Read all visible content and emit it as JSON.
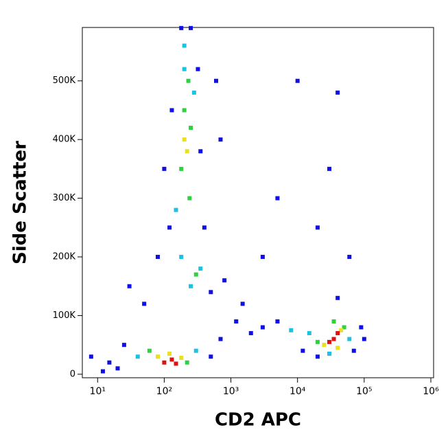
{
  "chart_data": {
    "type": "scatter",
    "xlabel": "CD2 APC",
    "ylabel": "Side Scatter",
    "xscale": "log",
    "xlim": [
      5.9,
      1100000
    ],
    "xticks": [
      {
        "value": 10,
        "label": "10¹"
      },
      {
        "value": 100,
        "label": "10²"
      },
      {
        "value": 1000,
        "label": "10³"
      },
      {
        "value": 10000,
        "label": "10⁴"
      },
      {
        "value": 100000,
        "label": "10⁵"
      },
      {
        "value": 1000000,
        "label": "10⁶"
      }
    ],
    "ylim": [
      -6000,
      591000
    ],
    "yticks": [
      0,
      {
        "value": 100000,
        "label": "100K"
      },
      {
        "value": 200000,
        "label": "200K"
      },
      {
        "value": 300000,
        "label": "300K"
      },
      {
        "value": 400000,
        "label": "400K"
      },
      {
        "value": 500000,
        "label": "500K"
      }
    ],
    "series": [
      {
        "color": "#1010e0",
        "x": [
          15,
          25,
          20,
          500,
          700,
          50,
          80,
          120,
          400,
          500,
          800,
          1500,
          3000,
          5000,
          2000,
          100,
          350,
          130,
          320,
          250,
          180,
          700,
          1200,
          90000,
          70000,
          12000,
          20000,
          20000,
          30000,
          40000,
          10000,
          5000,
          60000,
          8,
          12,
          30,
          600,
          100000,
          40000,
          3000
        ],
        "values": [
          20000,
          50000,
          10000,
          30000,
          60000,
          120000,
          200000,
          250000,
          250000,
          140000,
          160000,
          120000,
          80000,
          90000,
          70000,
          350000,
          380000,
          450000,
          520000,
          590000,
          590000,
          400000,
          90000,
          80000,
          40000,
          40000,
          30000,
          250000,
          350000,
          480000,
          500000,
          300000,
          200000,
          30000,
          5000,
          150000,
          500000,
          60000,
          130000,
          200000
        ]
      },
      {
        "color": "#20c0e0",
        "x": [
          40,
          300,
          150,
          280,
          200,
          180,
          350,
          250,
          15000,
          60000,
          8000,
          30000,
          200
        ],
        "values": [
          30000,
          40000,
          280000,
          480000,
          520000,
          200000,
          180000,
          150000,
          70000,
          60000,
          75000,
          35000,
          560000
        ]
      },
      {
        "color": "#30d040",
        "x": [
          60,
          220,
          180,
          250,
          200,
          240,
          300,
          20000,
          50000,
          35000,
          230
        ],
        "values": [
          40000,
          20000,
          350000,
          420000,
          450000,
          300000,
          170000,
          55000,
          80000,
          90000,
          500000
        ]
      },
      {
        "color": "#e8e020",
        "x": [
          80,
          120,
          180,
          200,
          220,
          25000,
          45000,
          40000
        ],
        "values": [
          30000,
          35000,
          28000,
          400000,
          380000,
          50000,
          75000,
          45000
        ]
      },
      {
        "color": "#e01010",
        "x": [
          100,
          130,
          150,
          35000,
          40000,
          30000
        ],
        "values": [
          20000,
          25000,
          18000,
          60000,
          70000,
          55000
        ]
      }
    ]
  }
}
